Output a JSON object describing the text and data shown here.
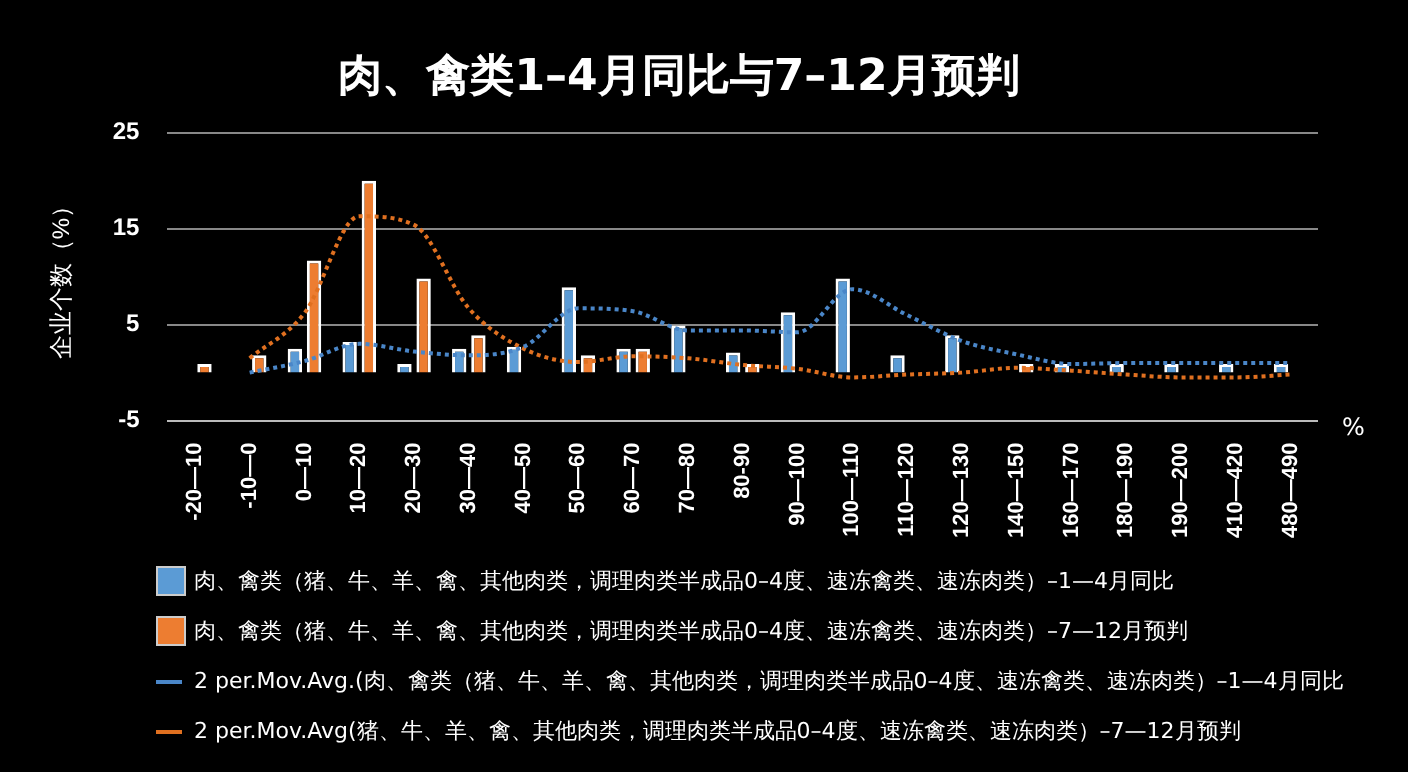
{
  "chart_data": {
    "type": "bar",
    "title": "肉、禽类1–4月同比与7–12月预判",
    "ylabel": "企业个数（%）",
    "xlabel": "%",
    "categories": [
      "-20—10",
      "-10—0",
      "0—10",
      "10—20",
      "20—30",
      "30—40",
      "40—50",
      "50—60",
      "60—70",
      "70—80",
      "80-90",
      "90—100",
      "100—110",
      "110—120",
      "120—130",
      "140—150",
      "160—170",
      "180—190",
      "190—200",
      "410—420",
      "480—490"
    ],
    "ylim": [
      -5,
      25
    ],
    "yticks": [
      -5,
      5,
      15,
      25
    ],
    "grid": "y",
    "legend": "bottom",
    "line_style": "dotted",
    "marker": "none",
    "series": [
      {
        "name": "肉、禽类（猪、牛、羊、禽、其他肉类，调理肉类半成品0–4度、速冻禽类、速冻肉类）–1—4月同比",
        "color": "#5b9bd5",
        "values": [
          null,
          null,
          2.5,
          3.2,
          0.9,
          2.5,
          2.7,
          8.9,
          2.5,
          4.9,
          2.1,
          6.3,
          9.8,
          1.8,
          3.9,
          null,
          0.9,
          0.9,
          0.9,
          0.9,
          0.9
        ]
      },
      {
        "name": "肉、禽类（猪、牛、羊、禽、其他肉类，调理肉类半成品0–4度、速冻禽类、速冻肉类）–7—12月预判",
        "color": "#ed7d31",
        "values": [
          0.9,
          1.8,
          11.7,
          20,
          9.8,
          3.9,
          null,
          1.8,
          2.5,
          null,
          0.9,
          null,
          null,
          null,
          null,
          0.9,
          null,
          null,
          null,
          null,
          null
        ]
      },
      {
        "type": "line",
        "name": "2 per.Mov.Avg.(肉、禽类（猪、牛、羊、禽、其他肉类，调理肉类半成品0–4度、速冻禽类、速冻肉类）–1—4月同比",
        "color": "#4a86c8",
        "values": [
          null,
          0,
          1.2,
          3,
          2.2,
          1.8,
          2.7,
          6.7,
          6.4,
          4.4,
          4.4,
          4.2,
          8.7,
          6,
          3.3,
          1.9,
          0.9,
          1,
          1,
          1,
          1
        ]
      },
      {
        "type": "line",
        "name": "2 per.Mov.Avg(猪、牛、羊、禽、其他肉类，调理肉类半成品0–4度、速冻禽类、速冻肉类）–7—12月预判",
        "color": "#e07020",
        "values": [
          null,
          1.5,
          6.2,
          16.3,
          15.4,
          6.7,
          2.5,
          1.1,
          1.7,
          1.5,
          0.8,
          0.4,
          -0.5,
          -0.2,
          0,
          0.5,
          0.2,
          -0.2,
          -0.5,
          -0.5,
          -0.2
        ]
      }
    ]
  }
}
